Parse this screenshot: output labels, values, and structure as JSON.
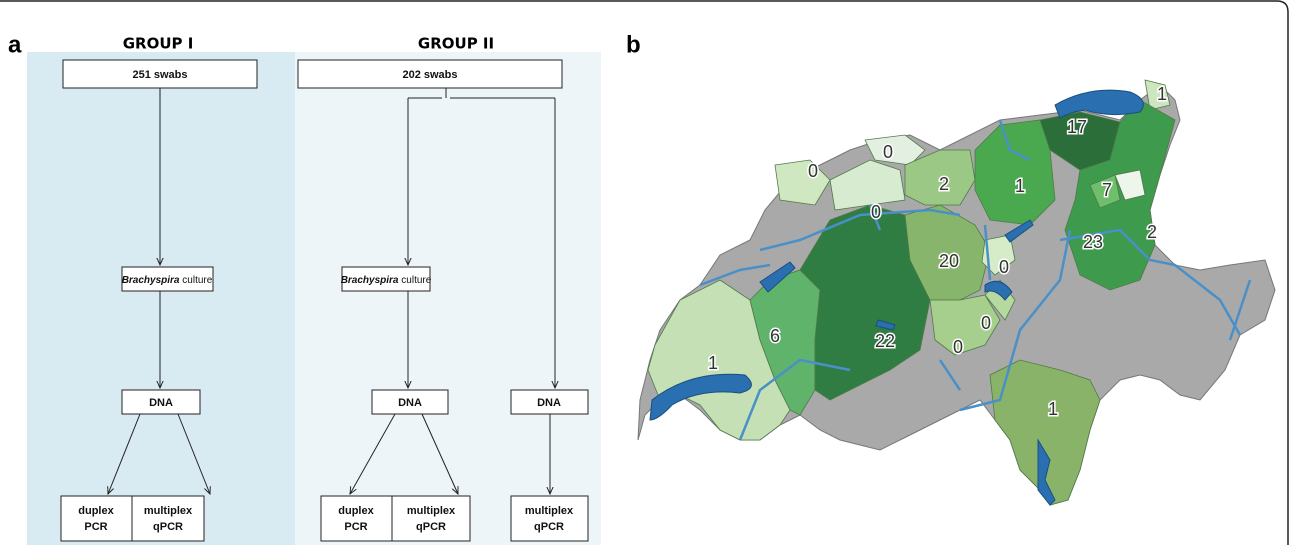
{
  "panel_a": {
    "label": "a",
    "group_1": {
      "title": "GROUP I",
      "swabs": "251 swabs",
      "culture": {
        "genus": "Brachyspira",
        "rest": "culture"
      },
      "dna": "DNA",
      "duplex": [
        "duplex",
        "PCR"
      ],
      "multiplex": [
        "multiplex",
        "qPCR"
      ]
    },
    "group_2": {
      "title": "GROUP II",
      "swabs": "202 swabs",
      "culture": {
        "genus": "Brachyspira",
        "rest": "culture"
      },
      "dna": "DNA",
      "duplex": [
        "duplex",
        "PCR"
      ],
      "multiplex": [
        "multiplex",
        "qPCR"
      ],
      "dna_direct": "DNA",
      "multiplex_direct": [
        "multiplex",
        "qPCR"
      ]
    }
  },
  "panel_b": {
    "label": "b",
    "counts": [
      1,
      17,
      0,
      0,
      2,
      1,
      7,
      0,
      2,
      23,
      20,
      0,
      0,
      22,
      0,
      6,
      1,
      1
    ]
  }
}
